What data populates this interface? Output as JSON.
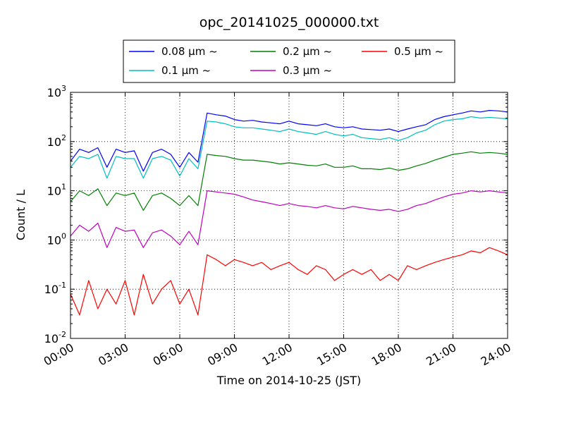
{
  "chart_data": {
    "type": "line",
    "title": "opc_20141025_000000.txt",
    "xlabel": "Time on 2014-10-25 (JST)",
    "ylabel": "Count / L",
    "yscale": "log",
    "ylim": [
      0.01,
      1000
    ],
    "xlim": [
      "00:00",
      "24:00"
    ],
    "x_ticks": [
      "00:00",
      "03:00",
      "06:00",
      "09:00",
      "12:00",
      "15:00",
      "18:00",
      "21:00",
      "24:00"
    ],
    "y_ticks": [
      {
        "base": "10",
        "exp": "-2"
      },
      {
        "base": "10",
        "exp": "-1"
      },
      {
        "base": "10",
        "exp": "0"
      },
      {
        "base": "10",
        "exp": "1"
      },
      {
        "base": "10",
        "exp": "2"
      },
      {
        "base": "10",
        "exp": "3"
      }
    ],
    "grid": true,
    "legend_position": "top-center",
    "x_hours": [
      0,
      0.5,
      1,
      1.5,
      2,
      2.5,
      3,
      3.5,
      4,
      4.5,
      5,
      5.5,
      6,
      6.5,
      7,
      7.5,
      8,
      8.5,
      9,
      9.5,
      10,
      10.5,
      11,
      11.5,
      12,
      12.5,
      13,
      13.5,
      14,
      14.5,
      15,
      15.5,
      16,
      16.5,
      17,
      17.5,
      18,
      18.5,
      19,
      19.5,
      20,
      20.5,
      21,
      21.5,
      22,
      22.5,
      23,
      23.5,
      24
    ],
    "series": [
      {
        "name": "0.08 μm ~",
        "color": "#0000ff",
        "values": [
          40,
          70,
          60,
          75,
          30,
          70,
          60,
          65,
          25,
          60,
          70,
          55,
          30,
          60,
          38,
          380,
          350,
          330,
          280,
          260,
          270,
          250,
          240,
          230,
          260,
          230,
          220,
          210,
          230,
          200,
          190,
          200,
          180,
          175,
          170,
          180,
          160,
          180,
          200,
          220,
          280,
          320,
          350,
          380,
          420,
          400,
          430,
          420,
          400
        ]
      },
      {
        "name": "0.1 μm ~",
        "color": "#00bfbf",
        "values": [
          30,
          50,
          45,
          55,
          18,
          50,
          45,
          45,
          18,
          45,
          50,
          42,
          20,
          45,
          28,
          260,
          250,
          230,
          200,
          190,
          190,
          180,
          170,
          160,
          180,
          160,
          150,
          140,
          160,
          140,
          130,
          140,
          120,
          115,
          110,
          120,
          105,
          120,
          150,
          170,
          220,
          260,
          280,
          290,
          320,
          300,
          310,
          300,
          290
        ]
      },
      {
        "name": "0.2 μm ~",
        "color": "#008000",
        "values": [
          6,
          10,
          8,
          11,
          5,
          9,
          8,
          9,
          4,
          8,
          9,
          7,
          5,
          8,
          5,
          55,
          52,
          50,
          45,
          42,
          42,
          40,
          38,
          35,
          37,
          35,
          33,
          32,
          35,
          30,
          30,
          32,
          28,
          28,
          27,
          29,
          26,
          28,
          32,
          36,
          42,
          48,
          55,
          58,
          62,
          58,
          60,
          58,
          55
        ]
      },
      {
        "name": "0.3 μm ~",
        "color": "#bf00bf",
        "values": [
          1.2,
          2.0,
          1.5,
          2.2,
          0.7,
          1.8,
          1.5,
          1.6,
          0.7,
          1.4,
          1.6,
          1.2,
          0.8,
          1.5,
          0.8,
          10,
          9.5,
          9,
          8.5,
          7.5,
          6.5,
          6,
          5.5,
          5,
          5.5,
          5,
          4.8,
          4.5,
          5,
          4.5,
          4.3,
          4.8,
          4.5,
          4.2,
          4,
          4.2,
          3.8,
          4.2,
          5,
          5.5,
          6.5,
          7.5,
          8.5,
          9,
          10,
          9.5,
          10,
          9.5,
          9
        ]
      },
      {
        "name": "0.5 μm ~",
        "color": "#ff0000",
        "values": [
          0.08,
          0.03,
          0.15,
          0.04,
          0.1,
          0.05,
          0.15,
          0.03,
          0.2,
          0.05,
          0.1,
          0.15,
          0.05,
          0.1,
          0.03,
          0.5,
          0.4,
          0.3,
          0.4,
          0.35,
          0.3,
          0.35,
          0.25,
          0.3,
          0.35,
          0.25,
          0.2,
          0.3,
          0.25,
          0.15,
          0.2,
          0.25,
          0.2,
          0.25,
          0.15,
          0.2,
          0.15,
          0.3,
          0.25,
          0.3,
          0.35,
          0.4,
          0.45,
          0.5,
          0.6,
          0.55,
          0.7,
          0.6,
          0.5
        ]
      }
    ]
  }
}
